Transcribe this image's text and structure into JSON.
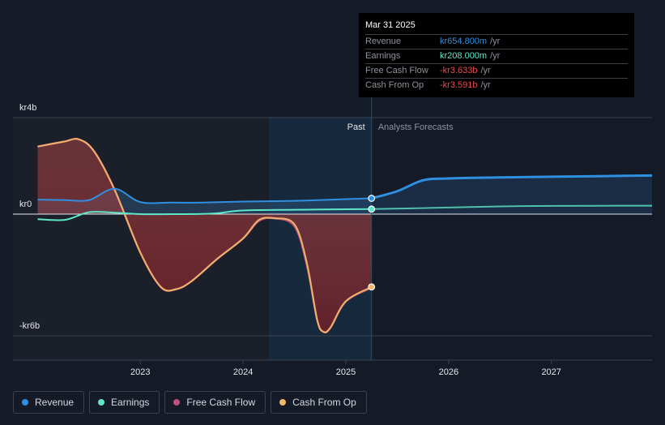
{
  "chart_data": {
    "type": "area",
    "ylim": [
      -6,
      4
    ],
    "y_tick_labels": [
      {
        "value": 4,
        "label": "kr4b"
      },
      {
        "value": 0,
        "label": "kr0"
      },
      {
        "value": -6,
        "label": "-kr6b"
      }
    ],
    "x_tick_labels": [
      {
        "value": 2023.0,
        "label": "2023"
      },
      {
        "value": 2024.0,
        "label": "2024"
      },
      {
        "value": 2025.0,
        "label": "2025"
      },
      {
        "value": 2026.0,
        "label": "2026"
      },
      {
        "value": 2027.0,
        "label": "2027"
      }
    ],
    "xlim": [
      2021.76,
      2027.98
    ],
    "past_label": "Past",
    "forecast_label": "Analysts Forecasts",
    "past_shade_start": 2024.25,
    "divider_x": 2025.25,
    "series": [
      {
        "name": "Revenue",
        "color": "#2f8fe0",
        "x": [
          2022.0,
          2022.27,
          2022.5,
          2022.75,
          2023.0,
          2023.3,
          2023.6,
          2024.0,
          2024.5,
          2025.0,
          2025.25
        ],
        "values": [
          0.6,
          0.58,
          0.58,
          1.05,
          0.5,
          0.48,
          0.48,
          0.52,
          0.55,
          0.62,
          0.655
        ]
      },
      {
        "name": "Revenue forecast",
        "color": "#2f8fe0",
        "x": [
          2025.25,
          2025.5,
          2025.75,
          2026.0,
          2026.5,
          2027.0,
          2027.98
        ],
        "values": [
          0.655,
          0.95,
          1.4,
          1.48,
          1.52,
          1.55,
          1.6
        ]
      },
      {
        "name": "Earnings",
        "color": "#5ee6c8",
        "x": [
          2022.0,
          2022.27,
          2022.5,
          2022.75,
          2023.0,
          2023.3,
          2023.6,
          2023.75,
          2024.0,
          2024.5,
          2025.0,
          2025.25
        ],
        "values": [
          -0.25,
          -0.28,
          0.08,
          0.06,
          0.0,
          0.0,
          0.01,
          0.04,
          0.15,
          0.18,
          0.2,
          0.208
        ]
      },
      {
        "name": "Earnings forecast",
        "color": "#5ee6c8",
        "x": [
          2025.25,
          2025.75,
          2026.5,
          2027.0,
          2027.98
        ],
        "values": [
          0.208,
          0.25,
          0.32,
          0.34,
          0.35
        ]
      },
      {
        "name": "Free Cash Flow",
        "color": "#c0507c",
        "x": [
          2022.0,
          2022.25,
          2022.4,
          2022.55,
          2022.75,
          2023.0,
          2023.2,
          2023.35,
          2023.5,
          2023.75,
          2024.0,
          2024.15,
          2024.3,
          2024.5,
          2024.62,
          2024.72,
          2024.78,
          2024.85,
          2025.0,
          2025.25
        ],
        "values": [
          2.8,
          3.0,
          3.1,
          2.6,
          1.0,
          -1.9,
          -3.6,
          -3.7,
          -3.3,
          -2.2,
          -1.2,
          -0.35,
          -0.2,
          -0.6,
          -2.5,
          -5.2,
          -5.8,
          -5.6,
          -4.3,
          -3.633
        ]
      },
      {
        "name": "Cash From Op",
        "color": "#f0b868",
        "x": [
          2022.0,
          2022.25,
          2022.4,
          2022.55,
          2022.75,
          2023.0,
          2023.2,
          2023.35,
          2023.5,
          2023.75,
          2024.0,
          2024.15,
          2024.3,
          2024.5,
          2024.62,
          2024.72,
          2024.78,
          2024.85,
          2025.0,
          2025.25
        ],
        "values": [
          2.8,
          3.0,
          3.1,
          2.6,
          1.0,
          -1.9,
          -3.6,
          -3.7,
          -3.3,
          -2.2,
          -1.2,
          -0.3,
          -0.2,
          -0.5,
          -2.4,
          -5.2,
          -5.8,
          -5.6,
          -4.3,
          -3.591
        ]
      }
    ]
  },
  "tooltip": {
    "date": "Mar 31 2025",
    "rows": [
      {
        "label": "Revenue",
        "value": "kr654.800m",
        "unit": "/yr",
        "color": "#2f8fe0"
      },
      {
        "label": "Earnings",
        "value": "kr208.000m",
        "unit": "/yr",
        "color": "#5ee6c8"
      },
      {
        "label": "Free Cash Flow",
        "value": "-kr3.633b",
        "unit": "/yr",
        "color": "#e84d4d"
      },
      {
        "label": "Cash From Op",
        "value": "-kr3.591b",
        "unit": "/yr",
        "color": "#e84d4d"
      }
    ]
  },
  "legend": [
    {
      "label": "Revenue",
      "color": "#2f8fe0"
    },
    {
      "label": "Earnings",
      "color": "#5ee6c8"
    },
    {
      "label": "Free Cash Flow",
      "color": "#c0507c"
    },
    {
      "label": "Cash From Op",
      "color": "#f0b868"
    }
  ]
}
